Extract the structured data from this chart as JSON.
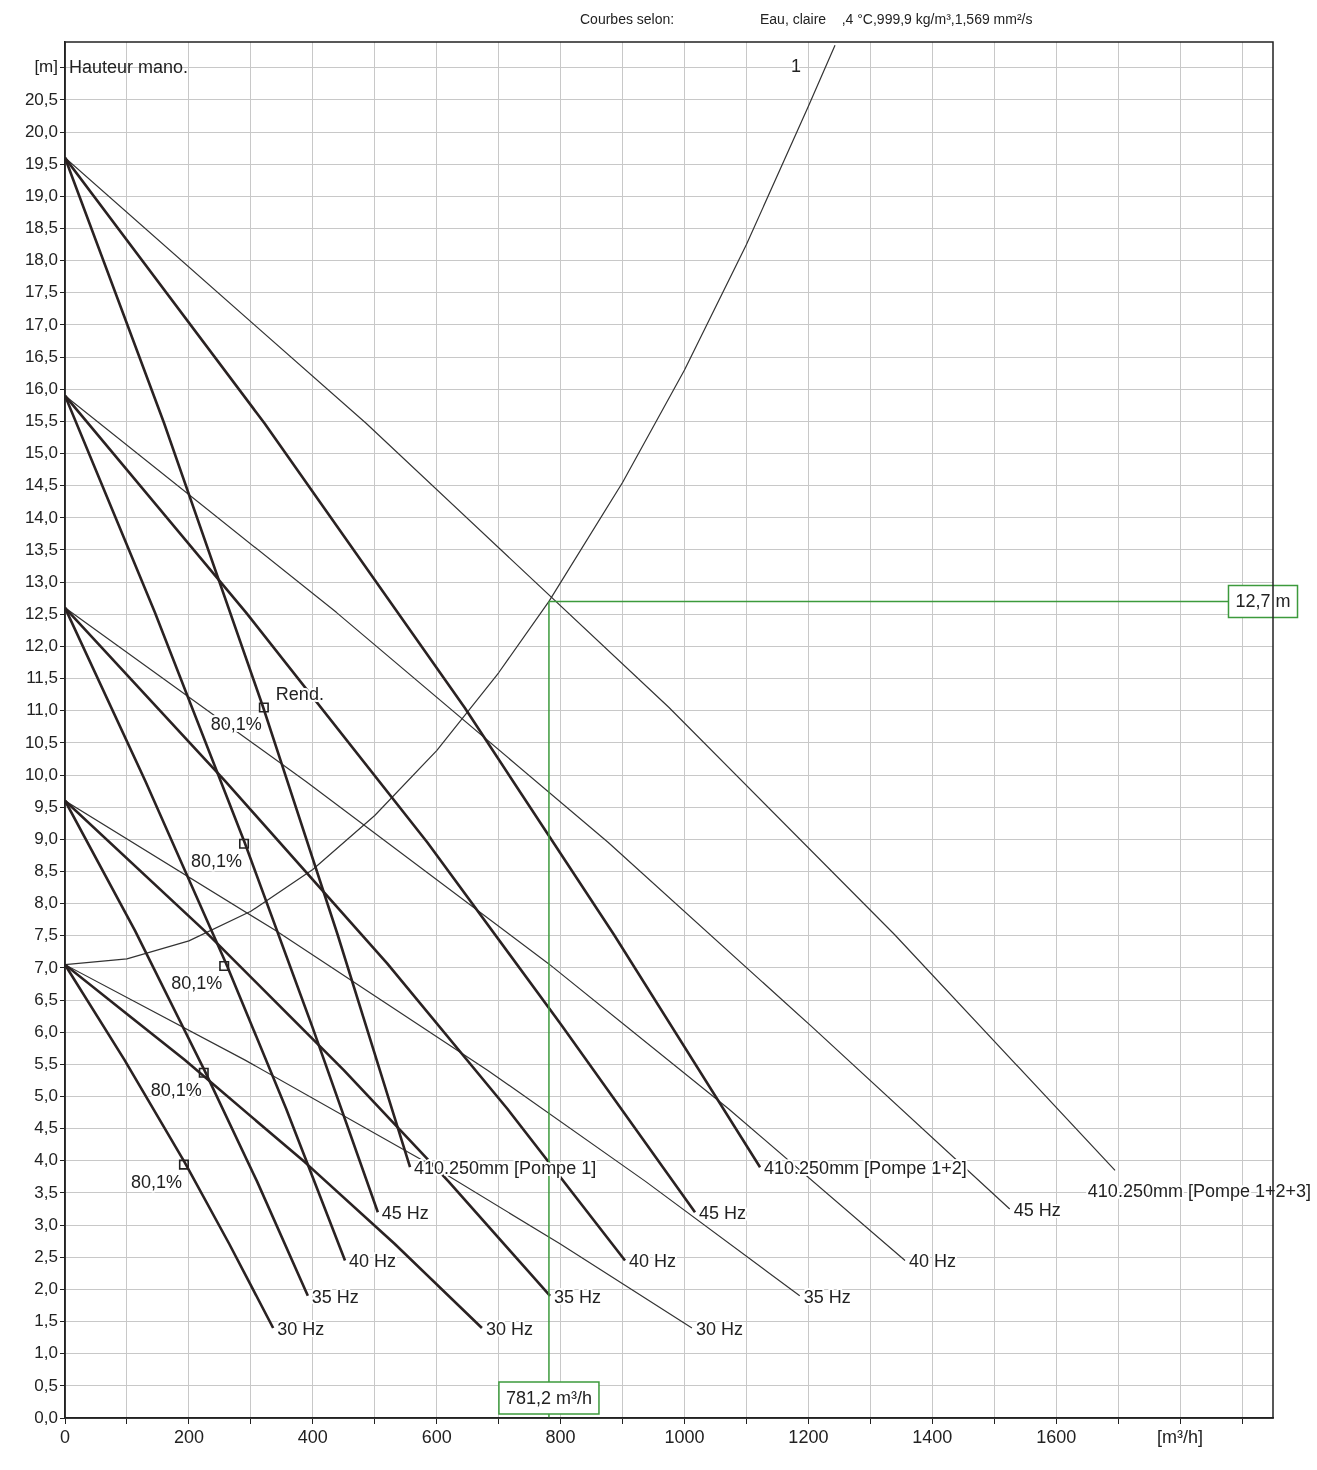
{
  "chart_data": {
    "type": "line",
    "title": "Courbes selon:",
    "subtitle": "Eau, claire    ,4 °C,999,9 kg/m³,1,569 mm²/s",
    "ylabel": "Hauteur mano.",
    "xlim": [
      0,
      1950
    ],
    "ylim": [
      0,
      21.4
    ],
    "xticks": [
      0,
      {
        "value": 100,
        "label": null
      },
      200,
      {
        "value": 300,
        "label": null
      },
      400,
      {
        "value": 500,
        "label": null
      },
      600,
      {
        "value": 700,
        "label": null
      },
      800,
      {
        "value": 900,
        "label": null
      },
      1000,
      {
        "value": 1100,
        "label": null
      },
      1200,
      {
        "value": 1300,
        "label": null
      },
      1400,
      {
        "value": 1500,
        "label": null
      },
      1600,
      {
        "value": 1700,
        "label": null
      },
      {
        "value": 1800,
        "label": "[m³/h]"
      },
      {
        "value": 1900,
        "label": null
      }
    ],
    "yticks": [
      {
        "value": 0,
        "label": "0,0"
      },
      {
        "value": 0.5,
        "label": "0,5"
      },
      {
        "value": 1,
        "label": "1,0"
      },
      {
        "value": 1.5,
        "label": "1,5"
      },
      {
        "value": 2,
        "label": "2,0"
      },
      {
        "value": 2.5,
        "label": "2,5"
      },
      {
        "value": 3,
        "label": "3,0"
      },
      {
        "value": 3.5,
        "label": "3,5"
      },
      {
        "value": 4,
        "label": "4,0"
      },
      {
        "value": 4.5,
        "label": "4,5"
      },
      {
        "value": 5,
        "label": "5,0"
      },
      {
        "value": 5.5,
        "label": "5,5"
      },
      {
        "value": 6,
        "label": "6,0"
      },
      {
        "value": 6.5,
        "label": "6,5"
      },
      {
        "value": 7,
        "label": "7,0"
      },
      {
        "value": 7.5,
        "label": "7,5"
      },
      {
        "value": 8,
        "label": "8,0"
      },
      {
        "value": 8.5,
        "label": "8,5"
      },
      {
        "value": 9,
        "label": "9,0"
      },
      {
        "value": 9.5,
        "label": "9,5"
      },
      {
        "value": 10,
        "label": "10,0"
      },
      {
        "value": 10.5,
        "label": "10,5"
      },
      {
        "value": 11,
        "label": "11,0"
      },
      {
        "value": 11.5,
        "label": "11,5"
      },
      {
        "value": 12,
        "label": "12,0"
      },
      {
        "value": 12.5,
        "label": "12,5"
      },
      {
        "value": 13,
        "label": "13,0"
      },
      {
        "value": 13.5,
        "label": "13,5"
      },
      {
        "value": 14,
        "label": "14,0"
      },
      {
        "value": 14.5,
        "label": "14,5"
      },
      {
        "value": 15,
        "label": "15,0"
      },
      {
        "value": 15.5,
        "label": "15,5"
      },
      {
        "value": 16,
        "label": "16,0"
      },
      {
        "value": 16.5,
        "label": "16,5"
      },
      {
        "value": 17,
        "label": "17,0"
      },
      {
        "value": 17.5,
        "label": "17,5"
      },
      {
        "value": 18,
        "label": "18,0"
      },
      {
        "value": 18.5,
        "label": "18,5"
      },
      {
        "value": 19,
        "label": "19,0"
      },
      {
        "value": 19.5,
        "label": "19,5"
      },
      {
        "value": 20,
        "label": "20,0"
      },
      {
        "value": 20.5,
        "label": "20,5"
      },
      {
        "value": 21,
        "label": "[m]"
      }
    ],
    "grid": true,
    "legend": false,
    "series": [
      {
        "color": "#2a2222",
        "x": [
          0,
          160,
          320,
          440,
          557
        ],
        "values": [
          19.6,
          15.47,
          11.05,
          7.52,
          3.9
        ]
      },
      {
        "color": "#2a2222",
        "x": [
          0,
          322,
          645,
          886,
          1122
        ],
        "values": [
          19.6,
          15.47,
          11.05,
          7.52,
          3.9
        ]
      },
      {
        "color": "#333333",
        "x": [
          0,
          486,
          975,
          1339,
          1695
        ],
        "values": [
          19.6,
          15.47,
          11.05,
          7.52,
          3.85
        ]
      },
      {
        "color": "#2a2222",
        "x": [
          0,
          145,
          290,
          399,
          505
        ],
        "values": [
          15.9,
          12.53,
          8.95,
          6.09,
          3.2
        ]
      },
      {
        "color": "#2a2222",
        "x": [
          0,
          292,
          585,
          803,
          1017
        ],
        "values": [
          15.9,
          12.53,
          8.95,
          6.09,
          3.2
        ]
      },
      {
        "color": "#333333",
        "x": [
          0,
          438,
          877,
          1205,
          1525
        ],
        "values": [
          15.9,
          12.53,
          8.95,
          6.09,
          3.25
        ]
      },
      {
        "color": "#2a2222",
        "x": [
          0,
          130,
          260,
          357,
          452
        ],
        "values": [
          12.6,
          9.9,
          7.07,
          4.81,
          2.45
        ]
      },
      {
        "color": "#2a2222",
        "x": [
          0,
          259,
          520,
          714,
          904
        ],
        "values": [
          12.6,
          9.9,
          7.07,
          4.81,
          2.45
        ]
      },
      {
        "color": "#333333",
        "x": [
          0,
          389,
          780,
          1071,
          1356
        ],
        "values": [
          12.6,
          9.9,
          7.07,
          4.81,
          2.45
        ]
      },
      {
        "color": "#2a2222",
        "x": [
          0,
          113,
          225,
          310,
          392
        ],
        "values": [
          9.6,
          7.58,
          5.41,
          3.68,
          1.9
        ]
      },
      {
        "color": "#2a2222",
        "x": [
          0,
          225,
          450,
          619,
          783
        ],
        "values": [
          9.6,
          7.58,
          5.41,
          3.68,
          1.9
        ]
      },
      {
        "color": "#333333",
        "x": [
          0,
          340,
          682,
          937,
          1186
        ],
        "values": [
          9.6,
          7.58,
          5.41,
          3.68,
          1.9
        ]
      },
      {
        "color": "#2a2222",
        "x": [
          0,
          96,
          193,
          265,
          336
        ],
        "values": [
          7.05,
          5.57,
          3.98,
          2.71,
          1.4
        ]
      },
      {
        "color": "#2a2222",
        "x": [
          0,
          193,
          387,
          532,
          673
        ],
        "values": [
          7.05,
          5.57,
          3.98,
          2.71,
          1.4
        ]
      },
      {
        "color": "#333333",
        "x": [
          0,
          290,
          582,
          799,
          1012
        ],
        "values": [
          7.05,
          5.57,
          3.98,
          2.71,
          1.4
        ]
      },
      {
        "name": "1",
        "color": "#333333",
        "x": [
          0,
          100,
          200,
          300,
          400,
          500,
          600,
          700,
          781.2,
          900,
          1000,
          1100,
          1200,
          1243
        ],
        "values": [
          7.05,
          7.14,
          7.42,
          7.88,
          8.53,
          9.37,
          10.38,
          11.59,
          12.7,
          14.55,
          16.3,
          18.25,
          20.4,
          21.35
        ]
      },
      {
        "type": "scatter",
        "name": "Rend.",
        "marker": "square",
        "color": "#222222",
        "x": [
          321,
          289,
          257,
          224,
          192
        ],
        "values": [
          11.05,
          8.93,
          7.03,
          5.37,
          3.94
        ]
      }
    ],
    "ref_lines": [
      {
        "axis": "y",
        "value": 12.7,
        "label": "12,7 m",
        "color": "#3c9a3c"
      },
      {
        "axis": "x",
        "value": 781.2,
        "label": "781,2 m³/h",
        "color": "#3c9a3c"
      }
    ],
    "annotations": [
      {
        "text": "410.250mm [Pompe 1]",
        "x": 557,
        "y": 3.9
      },
      {
        "text": "410.250mm [Pompe 1+2]",
        "x": 1122,
        "y": 3.9
      },
      {
        "text": "410.250mm [Pompe 1+2+3]",
        "x": 1695,
        "y": 3.85
      },
      {
        "text": "45 Hz",
        "x": 505,
        "y": 3.2
      },
      {
        "text": "45 Hz",
        "x": 1017,
        "y": 3.2
      },
      {
        "text": "45 Hz",
        "x": 1525,
        "y": 3.25
      },
      {
        "text": "40 Hz",
        "x": 452,
        "y": 2.45
      },
      {
        "text": "40 Hz",
        "x": 904,
        "y": 2.45
      },
      {
        "text": "40 Hz",
        "x": 1356,
        "y": 2.45
      },
      {
        "text": "35 Hz",
        "x": 392,
        "y": 1.9
      },
      {
        "text": "35 Hz",
        "x": 783,
        "y": 1.9
      },
      {
        "text": "35 Hz",
        "x": 1186,
        "y": 1.9
      },
      {
        "text": "30 Hz",
        "x": 336,
        "y": 1.4
      },
      {
        "text": "30 Hz",
        "x": 673,
        "y": 1.4
      },
      {
        "text": "30 Hz",
        "x": 1012,
        "y": 1.4
      },
      {
        "text": "80,1%",
        "x": 321,
        "y": 11.05
      },
      {
        "text": "80,1%",
        "x": 289,
        "y": 8.93
      },
      {
        "text": "80,1%",
        "x": 257,
        "y": 7.03
      },
      {
        "text": "80,1%",
        "x": 224,
        "y": 5.37
      },
      {
        "text": "80,1%",
        "x": 192,
        "y": 3.94
      }
    ]
  }
}
